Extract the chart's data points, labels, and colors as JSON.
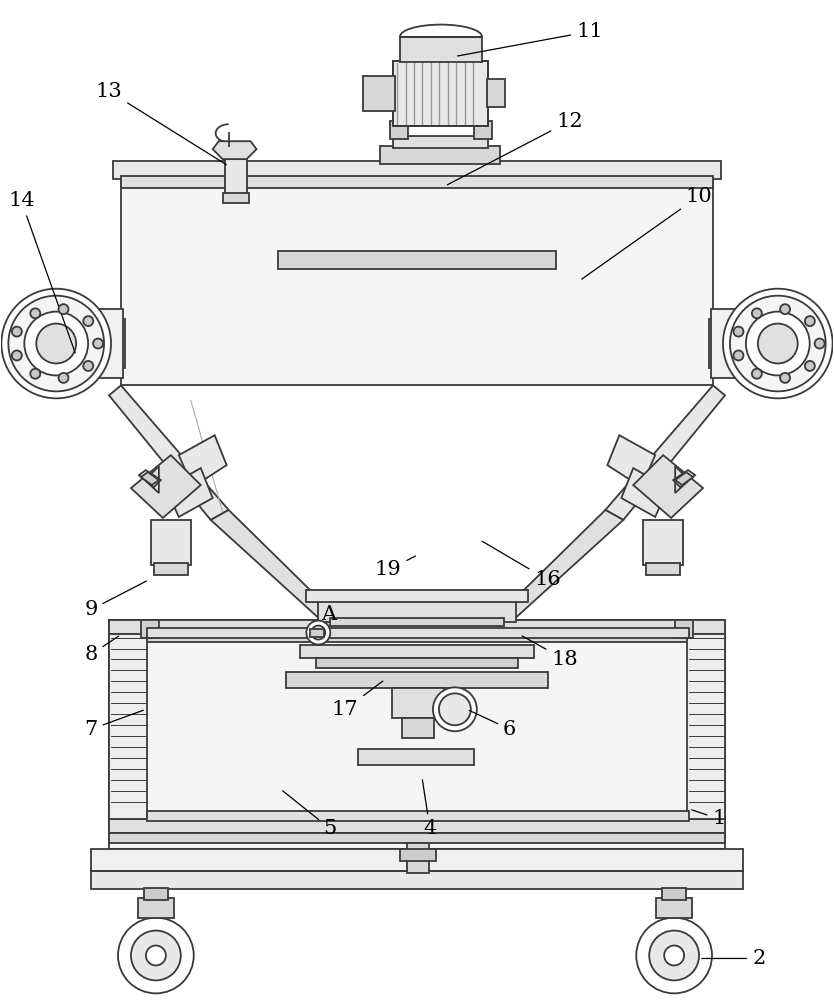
{
  "bg_color": "#ffffff",
  "line_color": "#3a3a3a",
  "line_width": 1.3,
  "fig_width": 8.34,
  "fig_height": 10.0,
  "dpi": 100,
  "annotations": [
    [
      "1",
      720,
      820,
      690,
      810
    ],
    [
      "2",
      760,
      960,
      700,
      960
    ],
    [
      "4",
      430,
      830,
      422,
      778
    ],
    [
      "5",
      330,
      830,
      280,
      790
    ],
    [
      "6",
      510,
      730,
      467,
      710
    ],
    [
      "7",
      90,
      730,
      145,
      710
    ],
    [
      "8",
      90,
      655,
      120,
      635
    ],
    [
      "9",
      90,
      610,
      148,
      580
    ],
    [
      "10",
      700,
      195,
      580,
      280
    ],
    [
      "11",
      590,
      30,
      455,
      55
    ],
    [
      "12",
      570,
      120,
      445,
      185
    ],
    [
      "13",
      108,
      90,
      228,
      165
    ],
    [
      "14",
      20,
      200,
      75,
      355
    ],
    [
      "16",
      548,
      580,
      480,
      540
    ],
    [
      "17",
      345,
      710,
      385,
      680
    ],
    [
      "18",
      565,
      660,
      520,
      635
    ],
    [
      "19",
      388,
      570,
      418,
      555
    ],
    [
      "A",
      328,
      615,
      318,
      635
    ]
  ]
}
